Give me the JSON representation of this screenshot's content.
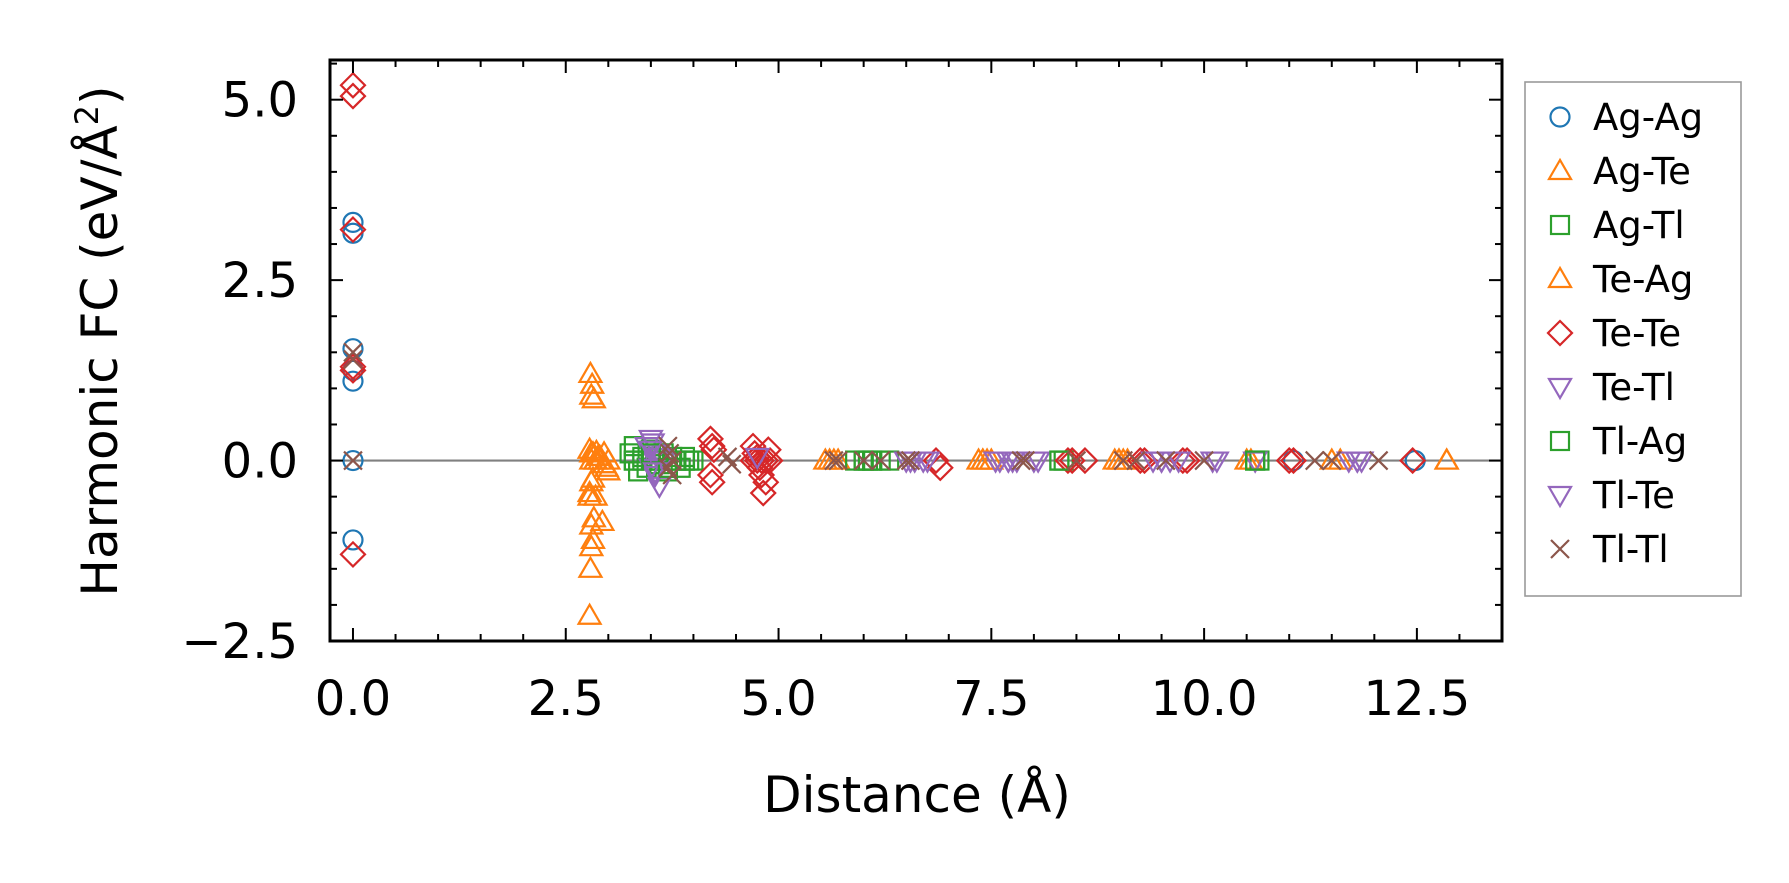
{
  "chart_data": {
    "type": "scatter",
    "title": "",
    "xlabel": "Distance (Å)",
    "ylabel_prefix": "Harmonic FC (eV/Å",
    "ylabel_sup": "2",
    "ylabel_suffix": ")",
    "xlim": [
      -0.27,
      13.5
    ],
    "ylim": [
      -2.5,
      5.55
    ],
    "xticks": [
      0.0,
      2.5,
      5.0,
      7.5,
      10.0,
      12.5
    ],
    "xtick_labels": [
      "0.0",
      "2.5",
      "5.0",
      "7.5",
      "10.0",
      "12.5"
    ],
    "yticks": [
      -2.5,
      0.0,
      2.5,
      5.0
    ],
    "ytick_labels": [
      "−2.5",
      "0.0",
      "2.5",
      "5.0"
    ],
    "x_minor_step": 0.5,
    "y_minor_step": 0.5,
    "zero_line": true,
    "legend_position": "outside-right",
    "series": [
      {
        "name": "Ag-Ag",
        "marker": "circle",
        "color": "#1f77b4",
        "x": [
          0.0,
          0.0,
          0.0,
          0.0,
          0.0,
          0.0,
          0.0,
          11.05,
          12.48
        ],
        "y": [
          3.3,
          3.15,
          1.55,
          1.1,
          1.25,
          0.0,
          -1.1,
          0.0,
          0.0
        ]
      },
      {
        "name": "Ag-Te",
        "marker": "triangle-up",
        "color": "#ff7f0e",
        "x": [
          2.78,
          2.79,
          2.8,
          2.82,
          2.8,
          2.83,
          2.85,
          2.78,
          2.8,
          2.82,
          2.79,
          2.81,
          2.8,
          2.83,
          2.93,
          2.78,
          2.82,
          2.86,
          2.88,
          2.9,
          2.95,
          2.98,
          3.0,
          2.8,
          2.85,
          2.9,
          2.95,
          5.55,
          5.6,
          5.65,
          5.7,
          7.35,
          7.4,
          7.45,
          7.5,
          8.95,
          9.0,
          9.05,
          9.1,
          10.5,
          10.55,
          11.5,
          11.6,
          12.85
        ],
        "y": [
          -2.15,
          -1.5,
          -1.2,
          -1.1,
          -0.9,
          -0.8,
          -0.5,
          -0.45,
          -0.3,
          -0.25,
          1.2,
          1.05,
          0.9,
          0.85,
          -0.85,
          0.15,
          0.1,
          0.12,
          0.05,
          0.0,
          -0.05,
          -0.1,
          -0.15,
          0.0,
          0.0,
          0.05,
          0.1,
          0.0,
          0.0,
          0.0,
          0.0,
          0.0,
          0.0,
          0.0,
          0.0,
          0.0,
          0.0,
          0.0,
          0.0,
          0.0,
          0.0,
          0.0,
          0.0,
          0.0
        ]
      },
      {
        "name": "Ag-Tl",
        "marker": "square",
        "color": "#2ca02c",
        "x": [
          3.25,
          3.3,
          3.35,
          3.4,
          3.45,
          3.5,
          3.55,
          3.6,
          3.65,
          3.7,
          3.75,
          3.8,
          3.85,
          3.9,
          3.95,
          4.0,
          3.3,
          3.4,
          3.5,
          3.6,
          3.7,
          3.8,
          3.9,
          5.9,
          6.0,
          6.05,
          6.1,
          6.2,
          6.3,
          8.3,
          8.35,
          10.6,
          10.65
        ],
        "y": [
          0.1,
          0.2,
          -0.15,
          0.05,
          -0.1,
          0.15,
          0.0,
          -0.05,
          0.1,
          -0.15,
          0.05,
          0.0,
          -0.1,
          0.05,
          0.0,
          0.0,
          0.0,
          0.0,
          0.0,
          0.0,
          0.0,
          0.0,
          0.0,
          0.0,
          0.0,
          0.0,
          0.0,
          0.0,
          0.0,
          0.0,
          0.0,
          0.0,
          0.0
        ]
      },
      {
        "name": "Te-Ag",
        "marker": "triangle-up",
        "color": "#ff7f0e",
        "x": [
          2.78,
          2.8,
          2.85,
          2.9,
          2.95,
          3.0,
          7.4,
          9.0,
          12.85
        ],
        "y": [
          -0.5,
          0.1,
          0.0,
          0.05,
          -0.05,
          0.0,
          0.0,
          0.0,
          0.0
        ]
      },
      {
        "name": "Te-Te",
        "marker": "diamond",
        "color": "#d62728",
        "x": [
          0.0,
          0.0,
          0.0,
          0.0,
          0.0,
          0.0,
          4.2,
          4.22,
          4.24,
          4.2,
          4.22,
          4.7,
          4.72,
          4.75,
          4.78,
          4.8,
          4.85,
          4.7,
          4.75,
          4.8,
          4.85,
          4.9,
          4.82,
          4.88,
          6.85,
          6.9,
          8.4,
          8.45,
          8.6,
          9.25,
          9.3,
          9.75,
          9.8,
          11.0,
          11.05,
          12.45
        ],
        "y": [
          5.2,
          5.05,
          3.2,
          1.25,
          1.3,
          -1.3,
          0.3,
          0.2,
          0.15,
          -0.2,
          -0.3,
          0.2,
          0.1,
          0.05,
          -0.1,
          -0.2,
          -0.3,
          0.0,
          0.0,
          0.0,
          0.0,
          0.0,
          -0.45,
          0.15,
          0.0,
          -0.1,
          0.0,
          0.0,
          0.0,
          0.0,
          0.0,
          0.0,
          0.0,
          0.0,
          0.0,
          0.0
        ]
      },
      {
        "name": "Te-Tl",
        "marker": "triangle-down",
        "color": "#9467bd",
        "x": [
          3.45,
          3.5,
          3.52,
          3.55,
          3.6,
          3.65,
          3.5,
          3.55,
          3.6,
          4.75,
          6.5,
          6.55,
          6.7,
          6.75,
          7.55,
          7.6,
          7.7,
          7.75,
          7.8,
          8.0,
          8.05,
          9.4,
          9.5,
          9.6,
          9.7,
          10.1,
          10.15,
          10.6,
          11.7,
          11.8,
          11.85
        ],
        "y": [
          0.2,
          0.3,
          0.25,
          0.1,
          0.05,
          0.0,
          -0.1,
          -0.2,
          -0.35,
          0.05,
          0.0,
          0.0,
          0.0,
          0.0,
          0.0,
          0.0,
          0.0,
          0.0,
          0.0,
          0.0,
          0.0,
          0.0,
          0.0,
          0.0,
          0.0,
          0.0,
          0.0,
          0.0,
          0.0,
          0.0,
          0.0
        ]
      },
      {
        "name": "Tl-Ag",
        "marker": "square",
        "color": "#2ca02c",
        "x": [
          3.3,
          3.5,
          3.7,
          3.9,
          6.0,
          6.1,
          8.3,
          10.6
        ],
        "y": [
          0.0,
          0.1,
          -0.1,
          0.0,
          0.0,
          0.0,
          0.0,
          0.0
        ]
      },
      {
        "name": "Tl-Te",
        "marker": "triangle-down",
        "color": "#9467bd",
        "x": [
          3.5,
          3.55,
          6.6,
          7.7,
          9.5,
          11.8
        ],
        "y": [
          0.15,
          -0.15,
          0.0,
          0.0,
          0.0,
          0.0
        ]
      },
      {
        "name": "Tl-Tl",
        "marker": "x",
        "color": "#8c564b",
        "x": [
          0.0,
          0.0,
          0.0,
          3.7,
          3.72,
          3.75,
          3.7,
          3.75,
          4.4,
          4.45,
          5.65,
          5.7,
          6.0,
          6.2,
          6.5,
          6.55,
          7.85,
          7.9,
          8.5,
          9.05,
          9.2,
          9.55,
          10.0,
          11.3,
          11.5,
          12.05
        ],
        "y": [
          1.5,
          1.4,
          0.0,
          0.2,
          0.1,
          0.0,
          -0.1,
          -0.2,
          0.05,
          -0.05,
          0.0,
          0.0,
          0.0,
          0.0,
          0.0,
          0.0,
          0.0,
          0.0,
          0.0,
          0.0,
          0.0,
          0.0,
          0.0,
          0.0,
          0.0,
          0.0
        ]
      }
    ]
  }
}
